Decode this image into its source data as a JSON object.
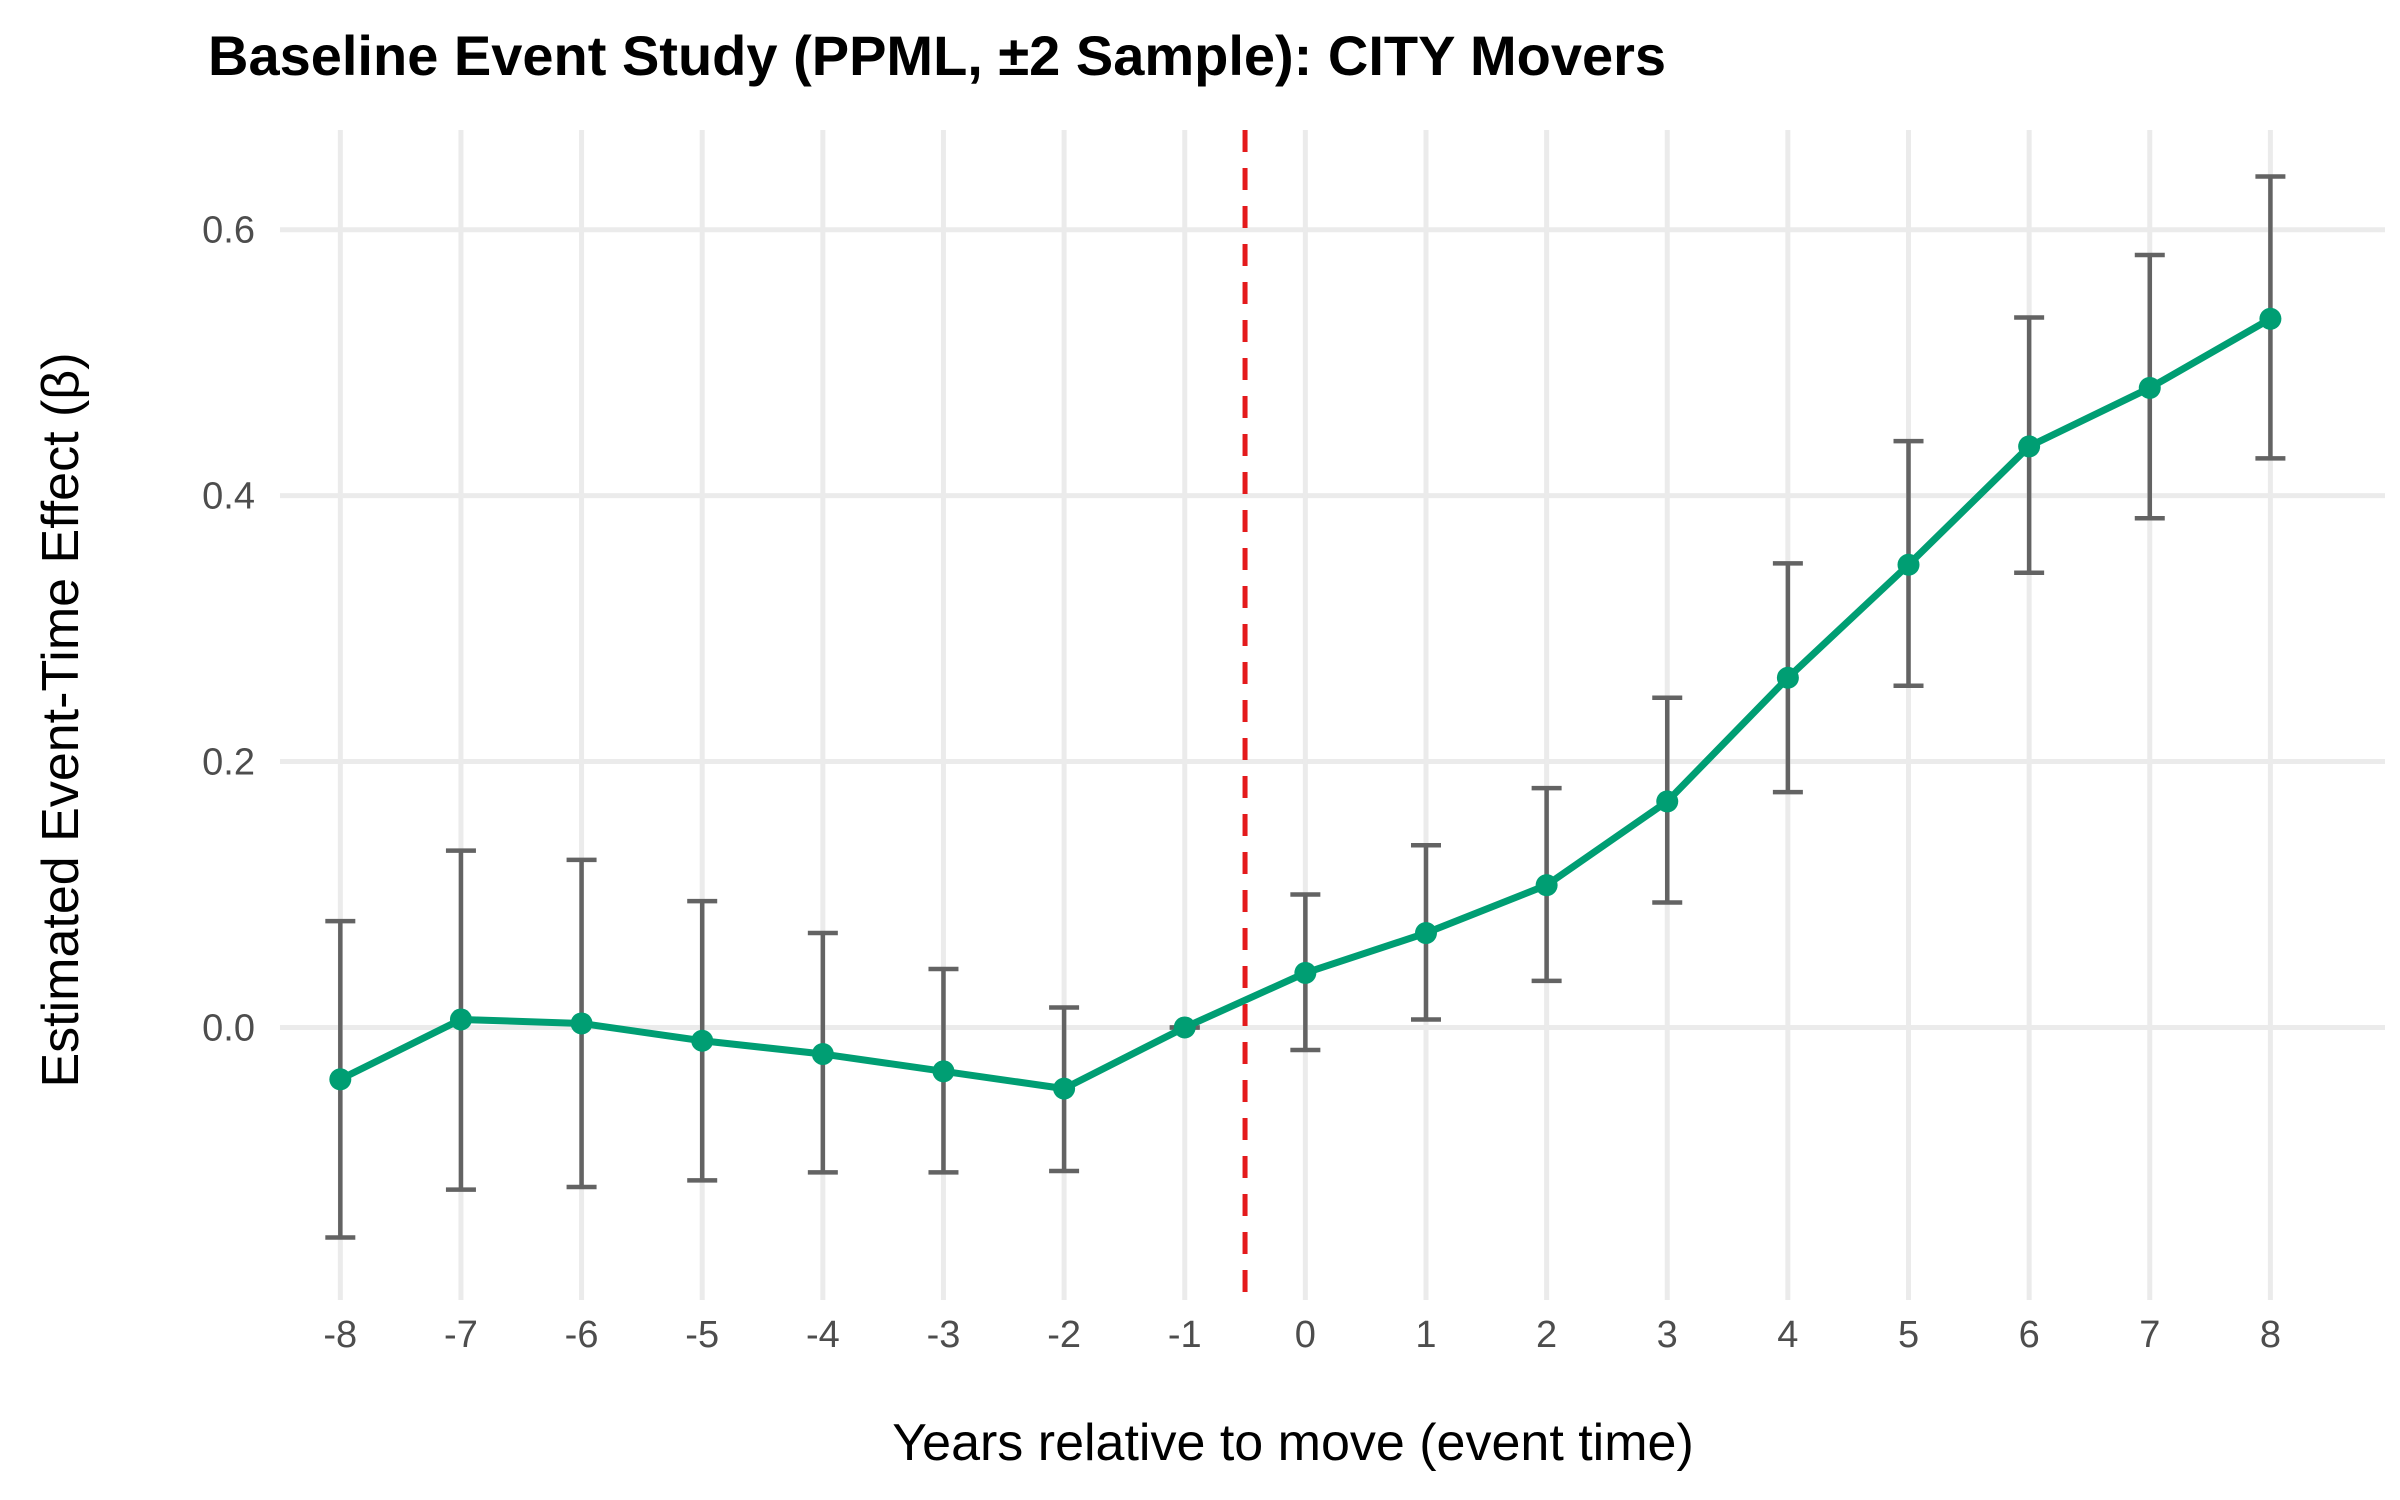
{
  "chart_data": {
    "type": "line",
    "title": "Baseline Event Study (PPML, ±2 Sample): CITY Movers",
    "xlabel": "Years relative to move (event time)",
    "ylabel": "Estimated Event-Time Effect (β)",
    "x": [
      -8,
      -7,
      -6,
      -5,
      -4,
      -3,
      -2,
      -1,
      0,
      1,
      2,
      3,
      4,
      5,
      6,
      7,
      8
    ],
    "x_tick_labels": [
      "-8",
      "-7",
      "-6",
      "-5",
      "-4",
      "-3",
      "-2",
      "-1",
      "0",
      "1",
      "2",
      "3",
      "4",
      "5",
      "6",
      "7",
      "8"
    ],
    "y_ticks": [
      0.0,
      0.2,
      0.4,
      0.6
    ],
    "y_tick_labels": [
      "0.0",
      "0.2",
      "0.4",
      "0.6"
    ],
    "xlim": [
      -8.5,
      8.95
    ],
    "ylim": [
      -0.205,
      0.675
    ],
    "series": [
      {
        "values": [
          -0.039,
          0.006,
          0.003,
          -0.01,
          -0.02,
          -0.033,
          -0.046,
          0.0,
          0.041,
          0.071,
          0.107,
          0.17,
          0.263,
          0.348,
          0.437,
          0.481,
          0.533
        ],
        "ci_lower": [
          -0.158,
          -0.122,
          -0.12,
          -0.115,
          -0.109,
          -0.109,
          -0.108,
          0.0,
          -0.017,
          0.006,
          0.035,
          0.094,
          0.177,
          0.257,
          0.342,
          0.383,
          0.428
        ],
        "ci_upper": [
          0.08,
          0.133,
          0.126,
          0.095,
          0.071,
          0.044,
          0.015,
          0.0,
          0.1,
          0.137,
          0.18,
          0.248,
          0.349,
          0.441,
          0.534,
          0.581,
          0.64
        ]
      }
    ],
    "reference_line_x": -0.5,
    "grid": true,
    "colors": {
      "series": "#009e73",
      "error_bars": "#636363",
      "reference_line": "#e41a1c",
      "grid": "#ebebeb",
      "tick_labels": "#4d4d4d"
    }
  }
}
